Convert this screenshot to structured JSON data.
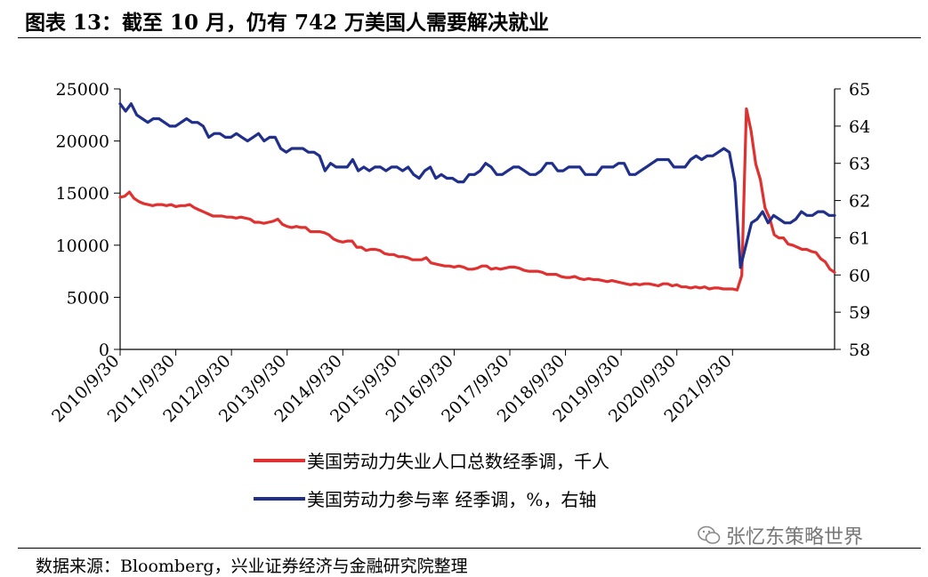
{
  "title": "图表 13：截至 10 月，仍有 742 万美国人需要解决就业",
  "source": "数据来源：Bloomberg，兴业证券经济与金融研究院整理",
  "watermark": "张忆东策略世界",
  "colors": {
    "red": "#e03131",
    "navy": "#1f2f8a"
  },
  "chart_data": {
    "type": "line",
    "x_ticks": [
      "2010/9/30",
      "2011/9/30",
      "2012/9/30",
      "2013/9/30",
      "2014/9/30",
      "2015/9/30",
      "2016/9/30",
      "2017/9/30",
      "2018/9/30",
      "2019/9/30",
      "2020/9/30",
      "2021/9/30"
    ],
    "left_axis": {
      "ylim": [
        0,
        25000
      ],
      "ticks": [
        "0",
        "5000",
        "10000",
        "15000",
        "20000",
        "25000"
      ]
    },
    "right_axis": {
      "ylim": [
        58,
        65
      ],
      "ticks": [
        "58",
        "59",
        "60",
        "61",
        "62",
        "63",
        "64",
        "65"
      ]
    },
    "series": [
      {
        "name": "美国劳动力失业人口总数经季调，千人",
        "axis": "left",
        "color": "#e03131",
        "points": [
          [
            0,
            14600
          ],
          [
            1,
            14700
          ],
          [
            2,
            15100
          ],
          [
            3,
            14500
          ],
          [
            4,
            14200
          ],
          [
            5,
            14000
          ],
          [
            6,
            13900
          ],
          [
            7,
            13800
          ],
          [
            8,
            13900
          ],
          [
            9,
            13900
          ],
          [
            10,
            13800
          ],
          [
            11,
            13900
          ],
          [
            12,
            13700
          ],
          [
            13,
            13800
          ],
          [
            14,
            13800
          ],
          [
            15,
            13900
          ],
          [
            16,
            13600
          ],
          [
            17,
            13400
          ],
          [
            18,
            13200
          ],
          [
            19,
            13000
          ],
          [
            20,
            12800
          ],
          [
            21,
            12800
          ],
          [
            22,
            12800
          ],
          [
            23,
            12700
          ],
          [
            24,
            12700
          ],
          [
            25,
            12600
          ],
          [
            26,
            12700
          ],
          [
            27,
            12600
          ],
          [
            28,
            12500
          ],
          [
            29,
            12200
          ],
          [
            30,
            12200
          ],
          [
            31,
            12100
          ],
          [
            32,
            12200
          ],
          [
            33,
            12300
          ],
          [
            34,
            12500
          ],
          [
            35,
            12000
          ],
          [
            36,
            11800
          ],
          [
            37,
            11700
          ],
          [
            38,
            11800
          ],
          [
            39,
            11700
          ],
          [
            40,
            11700
          ],
          [
            41,
            11300
          ],
          [
            42,
            11300
          ],
          [
            43,
            11300
          ],
          [
            44,
            11200
          ],
          [
            45,
            11000
          ],
          [
            46,
            10600
          ],
          [
            47,
            10400
          ],
          [
            48,
            10300
          ],
          [
            49,
            10400
          ],
          [
            50,
            10400
          ],
          [
            51,
            9800
          ],
          [
            52,
            9800
          ],
          [
            53,
            9500
          ],
          [
            54,
            9600
          ],
          [
            55,
            9600
          ],
          [
            56,
            9500
          ],
          [
            57,
            9200
          ],
          [
            58,
            9100
          ],
          [
            59,
            9100
          ],
          [
            60,
            8900
          ],
          [
            61,
            8900
          ],
          [
            62,
            8800
          ],
          [
            63,
            8600
          ],
          [
            64,
            8600
          ],
          [
            65,
            8600
          ],
          [
            66,
            8800
          ],
          [
            67,
            8300
          ],
          [
            68,
            8200
          ],
          [
            69,
            8100
          ],
          [
            70,
            8000
          ],
          [
            71,
            8000
          ],
          [
            72,
            7900
          ],
          [
            73,
            8000
          ],
          [
            74,
            7900
          ],
          [
            75,
            7700
          ],
          [
            76,
            7700
          ],
          [
            77,
            7800
          ],
          [
            78,
            8000
          ],
          [
            79,
            8000
          ],
          [
            80,
            7700
          ],
          [
            81,
            7800
          ],
          [
            82,
            7700
          ],
          [
            83,
            7800
          ],
          [
            84,
            7900
          ],
          [
            85,
            7900
          ],
          [
            86,
            7800
          ],
          [
            87,
            7600
          ],
          [
            88,
            7500
          ],
          [
            89,
            7500
          ],
          [
            90,
            7500
          ],
          [
            91,
            7400
          ],
          [
            92,
            7200
          ],
          [
            93,
            7200
          ],
          [
            94,
            7200
          ],
          [
            95,
            7000
          ],
          [
            96,
            6900
          ],
          [
            97,
            6900
          ],
          [
            98,
            7000
          ],
          [
            99,
            6800
          ],
          [
            100,
            6700
          ],
          [
            101,
            6800
          ],
          [
            102,
            6700
          ],
          [
            103,
            6700
          ],
          [
            104,
            6600
          ],
          [
            105,
            6500
          ],
          [
            106,
            6600
          ],
          [
            107,
            6500
          ],
          [
            108,
            6400
          ],
          [
            109,
            6300
          ],
          [
            110,
            6200
          ],
          [
            111,
            6300
          ],
          [
            112,
            6200
          ],
          [
            113,
            6300
          ],
          [
            114,
            6300
          ],
          [
            115,
            6200
          ],
          [
            116,
            6100
          ],
          [
            117,
            6300
          ],
          [
            118,
            6300
          ],
          [
            119,
            6100
          ],
          [
            120,
            6200
          ],
          [
            121,
            6000
          ],
          [
            122,
            6000
          ],
          [
            123,
            5900
          ],
          [
            124,
            6000
          ],
          [
            125,
            5900
          ],
          [
            126,
            6000
          ],
          [
            127,
            5800
          ],
          [
            128,
            5900
          ],
          [
            129,
            5900
          ],
          [
            130,
            5800
          ],
          [
            131,
            5800
          ],
          [
            132,
            5800
          ],
          [
            133,
            5700
          ],
          [
            134,
            7100
          ],
          [
            135,
            23100
          ],
          [
            136,
            21000
          ],
          [
            137,
            17800
          ],
          [
            138,
            16300
          ],
          [
            139,
            13600
          ],
          [
            140,
            12600
          ],
          [
            141,
            11000
          ],
          [
            142,
            10700
          ],
          [
            143,
            10700
          ],
          [
            144,
            10100
          ],
          [
            145,
            10000
          ],
          [
            146,
            9800
          ],
          [
            147,
            9600
          ],
          [
            148,
            9600
          ],
          [
            149,
            9400
          ],
          [
            150,
            9300
          ],
          [
            151,
            8700
          ],
          [
            152,
            8400
          ],
          [
            153,
            7700
          ],
          [
            154,
            7400
          ]
        ]
      },
      {
        "name": "美国劳动力参与率 经季调，%，右轴",
        "axis": "right",
        "color": "#1f2f8a",
        "points": [
          [
            0,
            64.6
          ],
          [
            1,
            64.4
          ],
          [
            2,
            64.6
          ],
          [
            3,
            64.3
          ],
          [
            4,
            64.2
          ],
          [
            5,
            64.1
          ],
          [
            6,
            64.2
          ],
          [
            7,
            64.2
          ],
          [
            8,
            64.1
          ],
          [
            9,
            64.0
          ],
          [
            10,
            64.0
          ],
          [
            11,
            64.1
          ],
          [
            12,
            64.2
          ],
          [
            13,
            64.1
          ],
          [
            14,
            64.1
          ],
          [
            15,
            64.0
          ],
          [
            16,
            63.7
          ],
          [
            17,
            63.8
          ],
          [
            18,
            63.8
          ],
          [
            19,
            63.7
          ],
          [
            20,
            63.7
          ],
          [
            21,
            63.8
          ],
          [
            22,
            63.7
          ],
          [
            23,
            63.6
          ],
          [
            24,
            63.7
          ],
          [
            25,
            63.8
          ],
          [
            26,
            63.6
          ],
          [
            27,
            63.7
          ],
          [
            28,
            63.7
          ],
          [
            29,
            63.4
          ],
          [
            30,
            63.3
          ],
          [
            31,
            63.4
          ],
          [
            32,
            63.4
          ],
          [
            33,
            63.4
          ],
          [
            34,
            63.3
          ],
          [
            35,
            63.3
          ],
          [
            36,
            63.2
          ],
          [
            37,
            62.8
          ],
          [
            38,
            63.0
          ],
          [
            39,
            62.9
          ],
          [
            40,
            62.9
          ],
          [
            41,
            62.9
          ],
          [
            42,
            63.1
          ],
          [
            43,
            62.8
          ],
          [
            44,
            62.9
          ],
          [
            45,
            62.8
          ],
          [
            46,
            62.9
          ],
          [
            47,
            62.9
          ],
          [
            48,
            62.8
          ],
          [
            49,
            62.9
          ],
          [
            50,
            62.9
          ],
          [
            51,
            62.8
          ],
          [
            52,
            62.9
          ],
          [
            53,
            62.7
          ],
          [
            54,
            62.6
          ],
          [
            55,
            62.8
          ],
          [
            56,
            62.9
          ],
          [
            57,
            62.6
          ],
          [
            58,
            62.7
          ],
          [
            59,
            62.6
          ],
          [
            60,
            62.6
          ],
          [
            61,
            62.5
          ],
          [
            62,
            62.5
          ],
          [
            63,
            62.7
          ],
          [
            64,
            62.7
          ],
          [
            65,
            62.8
          ],
          [
            66,
            63.0
          ],
          [
            67,
            62.9
          ],
          [
            68,
            62.7
          ],
          [
            69,
            62.7
          ],
          [
            70,
            62.8
          ],
          [
            71,
            62.9
          ],
          [
            72,
            62.9
          ],
          [
            73,
            62.8
          ],
          [
            74,
            62.7
          ],
          [
            75,
            62.7
          ],
          [
            76,
            62.8
          ],
          [
            77,
            63.0
          ],
          [
            78,
            63.0
          ],
          [
            79,
            62.8
          ],
          [
            80,
            62.8
          ],
          [
            81,
            62.9
          ],
          [
            82,
            62.9
          ],
          [
            83,
            62.9
          ],
          [
            84,
            62.7
          ],
          [
            85,
            62.7
          ],
          [
            86,
            62.7
          ],
          [
            87,
            62.9
          ],
          [
            88,
            62.9
          ],
          [
            89,
            62.9
          ],
          [
            90,
            63.0
          ],
          [
            91,
            63.0
          ],
          [
            92,
            62.7
          ],
          [
            93,
            62.7
          ],
          [
            94,
            62.8
          ],
          [
            95,
            62.9
          ],
          [
            96,
            63.0
          ],
          [
            97,
            63.1
          ],
          [
            98,
            63.1
          ],
          [
            99,
            63.1
          ],
          [
            100,
            62.9
          ],
          [
            101,
            62.9
          ],
          [
            102,
            62.9
          ],
          [
            103,
            63.1
          ],
          [
            104,
            63.2
          ],
          [
            105,
            63.1
          ],
          [
            106,
            63.2
          ],
          [
            107,
            63.2
          ],
          [
            108,
            63.3
          ],
          [
            109,
            63.4
          ],
          [
            110,
            63.3
          ],
          [
            111,
            62.5
          ],
          [
            112,
            60.2
          ],
          [
            113,
            60.8
          ],
          [
            114,
            61.4
          ],
          [
            115,
            61.5
          ],
          [
            116,
            61.7
          ],
          [
            117,
            61.4
          ],
          [
            118,
            61.6
          ],
          [
            119,
            61.5
          ],
          [
            120,
            61.4
          ],
          [
            121,
            61.4
          ],
          [
            122,
            61.5
          ],
          [
            123,
            61.7
          ],
          [
            124,
            61.6
          ],
          [
            125,
            61.6
          ],
          [
            126,
            61.7
          ],
          [
            127,
            61.7
          ],
          [
            128,
            61.6
          ],
          [
            129,
            61.6
          ]
        ]
      }
    ]
  }
}
